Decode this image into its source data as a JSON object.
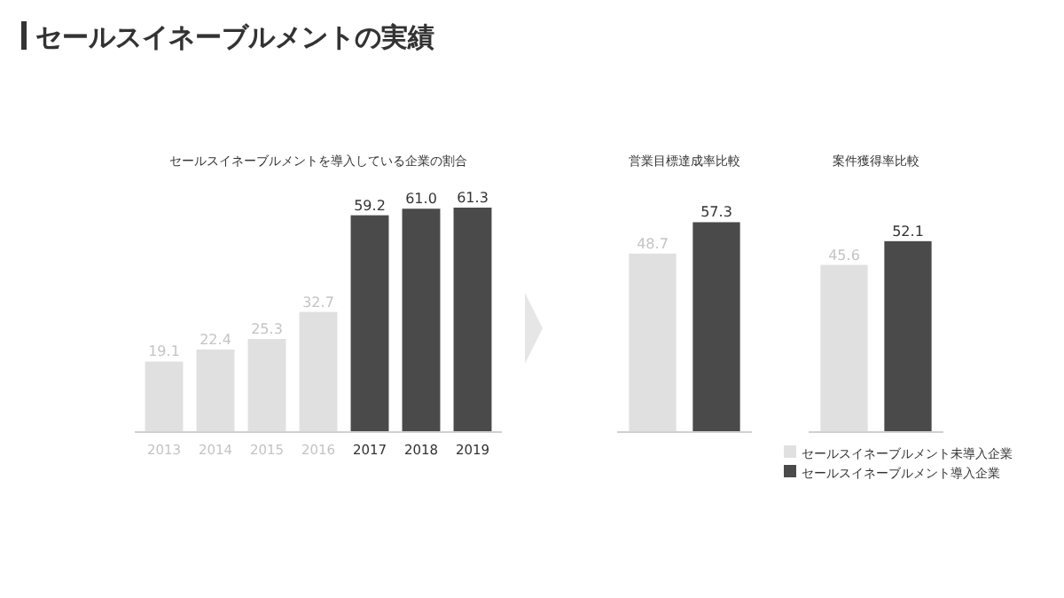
{
  "chart_data": [
    {
      "type": "bar",
      "title": "セールスイネーブルメントの実績",
      "subtitle": "セールスイネーブルメントを導入している企業の割合",
      "categories": [
        "2013",
        "2014",
        "2015",
        "2016",
        "2017",
        "2018",
        "2019"
      ],
      "values": [
        19.1,
        22.4,
        25.3,
        32.7,
        59.2,
        61.0,
        61.3
      ],
      "colors": [
        "#e0e0e0",
        "#e0e0e0",
        "#e0e0e0",
        "#e0e0e0",
        "#4a4a4a",
        "#4a4a4a",
        "#4a4a4a"
      ],
      "value_labels": [
        "19.1",
        "22.4",
        "25.3",
        "32.7",
        "59.2",
        "61.0",
        "61.3"
      ]
    },
    {
      "type": "bar",
      "title": "営業目標達成率比較",
      "categories": [
        null
      ],
      "series": [
        {
          "color": "#e0e0e0",
          "values": [
            48.7
          ]
        },
        {
          "color": "#4a4a4a",
          "values": [
            57.3
          ]
        }
      ],
      "data_labels": true
    },
    {
      "type": "bar",
      "title": "案件獲得率比較",
      "categories": [
        null
      ],
      "series": [
        {
          "name": "セールスイネーブルメント未導入企業",
          "color": "#e0e0e0",
          "values": [
            45.6
          ]
        },
        {
          "name": "セールスイネーブルメント導入企業",
          "color": "#4a4a4a",
          "values": [
            52.1
          ]
        }
      ],
      "data_labels": true,
      "legend": "bottom"
    }
  ]
}
